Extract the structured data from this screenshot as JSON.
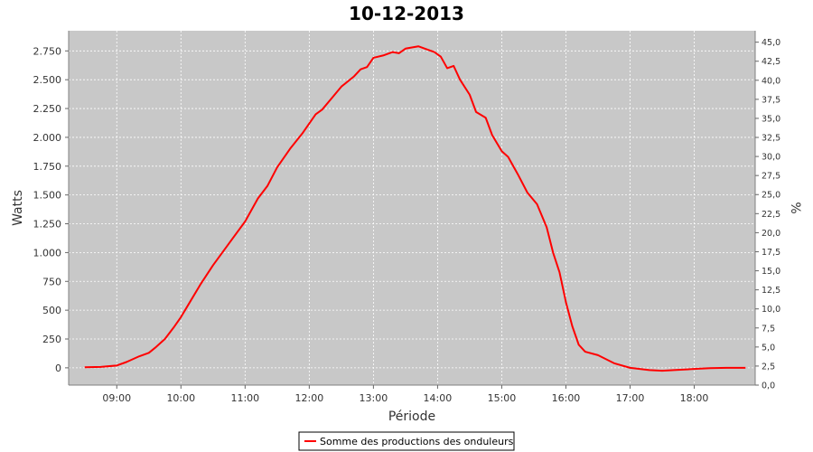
{
  "chart_data": {
    "type": "line",
    "title": "10-12-2013",
    "xlabel": "Période",
    "ylabel": "Watts",
    "y2label": "%",
    "xlim": [
      8.25,
      18.95
    ],
    "ylim": [
      -150,
      2925
    ],
    "y2lim": [
      0,
      46.5
    ],
    "grid": true,
    "legend_position": "bottom",
    "x_ticks": [
      {
        "value": 9,
        "label": "09:00"
      },
      {
        "value": 10,
        "label": "10:00"
      },
      {
        "value": 11,
        "label": "11:00"
      },
      {
        "value": 12,
        "label": "12:00"
      },
      {
        "value": 13,
        "label": "13:00"
      },
      {
        "value": 14,
        "label": "14:00"
      },
      {
        "value": 15,
        "label": "15:00"
      },
      {
        "value": 16,
        "label": "16:00"
      },
      {
        "value": 17,
        "label": "17:00"
      },
      {
        "value": 18,
        "label": "18:00"
      }
    ],
    "y_ticks": [
      {
        "value": 0,
        "label": "0"
      },
      {
        "value": 250,
        "label": "250"
      },
      {
        "value": 500,
        "label": "500"
      },
      {
        "value": 750,
        "label": "750"
      },
      {
        "value": 1000,
        "label": "1.000"
      },
      {
        "value": 1250,
        "label": "1.250"
      },
      {
        "value": 1500,
        "label": "1.500"
      },
      {
        "value": 1750,
        "label": "1.750"
      },
      {
        "value": 2000,
        "label": "2.000"
      },
      {
        "value": 2250,
        "label": "2.250"
      },
      {
        "value": 2500,
        "label": "2.500"
      },
      {
        "value": 2750,
        "label": "2.750"
      }
    ],
    "y2_ticks": [
      {
        "value": 0,
        "label": "0,0"
      },
      {
        "value": 2.5,
        "label": "2,5"
      },
      {
        "value": 5,
        "label": "5,0"
      },
      {
        "value": 7.5,
        "label": "7,5"
      },
      {
        "value": 10,
        "label": "10,0"
      },
      {
        "value": 12.5,
        "label": "12,5"
      },
      {
        "value": 15,
        "label": "15,0"
      },
      {
        "value": 17.5,
        "label": "17,5"
      },
      {
        "value": 20,
        "label": "20,0"
      },
      {
        "value": 22.5,
        "label": "22,5"
      },
      {
        "value": 25,
        "label": "25,0"
      },
      {
        "value": 27.5,
        "label": "27,5"
      },
      {
        "value": 30,
        "label": "30,0"
      },
      {
        "value": 32.5,
        "label": "32,5"
      },
      {
        "value": 35,
        "label": "35,0"
      },
      {
        "value": 37.5,
        "label": "37,5"
      },
      {
        "value": 40,
        "label": "40,0"
      },
      {
        "value": 42.5,
        "label": "42,5"
      },
      {
        "value": 45,
        "label": "45,0"
      }
    ],
    "colors": {
      "series": "#ff0000",
      "plot_background": "#c8c8c8",
      "grid": "#ffffff"
    },
    "series": [
      {
        "name": "Somme des productions des onduleurs",
        "x": [
          8.5,
          8.75,
          9.0,
          9.15,
          9.35,
          9.5,
          9.6,
          9.75,
          9.9,
          10.0,
          10.15,
          10.3,
          10.5,
          10.75,
          11.0,
          11.2,
          11.35,
          11.5,
          11.7,
          11.9,
          12.1,
          12.2,
          12.35,
          12.5,
          12.7,
          12.8,
          12.9,
          13.0,
          13.15,
          13.3,
          13.4,
          13.5,
          13.7,
          13.85,
          13.95,
          14.05,
          14.15,
          14.25,
          14.35,
          14.5,
          14.6,
          14.75,
          14.85,
          15.0,
          15.1,
          15.25,
          15.4,
          15.55,
          15.7,
          15.8,
          15.9,
          16.0,
          16.1,
          16.2,
          16.3,
          16.5,
          16.75,
          17.0,
          17.3,
          17.5,
          17.75,
          18.0,
          18.25,
          18.5,
          18.8
        ],
        "values": [
          5,
          8,
          20,
          50,
          100,
          130,
          175,
          250,
          360,
          440,
          580,
          720,
          890,
          1080,
          1270,
          1470,
          1580,
          1740,
          1900,
          2040,
          2200,
          2240,
          2340,
          2440,
          2530,
          2590,
          2610,
          2690,
          2710,
          2740,
          2730,
          2770,
          2790,
          2760,
          2740,
          2700,
          2600,
          2620,
          2500,
          2370,
          2220,
          2170,
          2020,
          1880,
          1830,
          1680,
          1520,
          1420,
          1220,
          1000,
          830,
          570,
          360,
          200,
          140,
          110,
          40,
          0,
          -20,
          -25,
          -18,
          -10,
          -3,
          0,
          0
        ]
      }
    ]
  }
}
